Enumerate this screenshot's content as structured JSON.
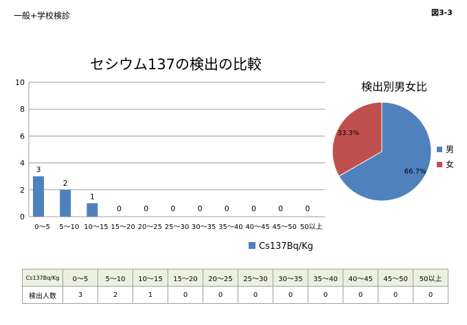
{
  "header": {
    "left_text": "一般+学校検診",
    "right_text": "図3-3"
  },
  "chart_data": [
    {
      "type": "bar",
      "title": "セシウム137の検出の比較",
      "categories": [
        "0〜5",
        "5〜10",
        "10〜15",
        "15〜20",
        "20〜25",
        "25〜30",
        "30〜35",
        "35〜40",
        "40〜45",
        "45〜50",
        "50以上"
      ],
      "series": [
        {
          "name": "Cs137Bq/Kg",
          "values": [
            3,
            2,
            1,
            0,
            0,
            0,
            0,
            0,
            0,
            0,
            0
          ]
        }
      ],
      "ylim": [
        0,
        10
      ],
      "yticks": [
        "0",
        "2",
        "4",
        "6",
        "8",
        "10"
      ],
      "grid": true,
      "legend": "bottom",
      "color": "#4f81bd"
    },
    {
      "type": "pie",
      "title": "検出別男女比",
      "slices": [
        {
          "label": "男",
          "value": 66.7,
          "display": "66.7%",
          "color": "#4f81bd"
        },
        {
          "label": "女",
          "value": 33.3,
          "display": "33.3%",
          "color": "#c0504d"
        }
      ],
      "legend": "right"
    }
  ],
  "table": {
    "header_label": "Cs137Bq/Kg",
    "row_label": "検出人数",
    "columns": [
      "0〜5",
      "5〜10",
      "10〜15",
      "15〜20",
      "20〜25",
      "25〜30",
      "30〜35",
      "35〜40",
      "40〜45",
      "45〜50",
      "50以上"
    ],
    "values": [
      "3",
      "2",
      "1",
      "0",
      "0",
      "0",
      "0",
      "0",
      "0",
      "0",
      "0"
    ]
  }
}
